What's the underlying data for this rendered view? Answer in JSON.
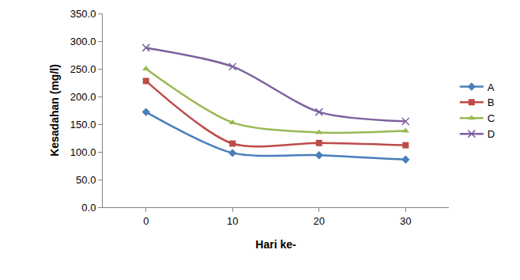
{
  "chart_data": {
    "type": "line",
    "x_label": "Hari ke-",
    "y_label": "Kesadahan (mg/l)",
    "x": [
      0,
      10,
      20,
      30
    ],
    "xlim": [
      -5,
      35
    ],
    "xticks": [
      0,
      10,
      20,
      30
    ],
    "ylim": [
      0,
      350
    ],
    "yticks": [
      {
        "value": 0,
        "label": "0.0"
      },
      {
        "value": 50,
        "label": "50.0"
      },
      {
        "value": 100,
        "label": "100.0"
      },
      {
        "value": 150,
        "label": "150.0"
      },
      {
        "value": 200,
        "label": "200.0"
      },
      {
        "value": 250,
        "label": "250.0"
      },
      {
        "value": 300,
        "label": "300.0"
      },
      {
        "value": 350,
        "label": "350.0"
      }
    ],
    "grid": false,
    "legend": "right",
    "line_style": "spline",
    "series": [
      {
        "name": "A",
        "color": "#4a7ebb",
        "marker": "diamond",
        "values": [
          172,
          98,
          94,
          86
        ]
      },
      {
        "name": "B",
        "color": "#be4b48",
        "marker": "square",
        "values": [
          228,
          115,
          116,
          112
        ]
      },
      {
        "name": "C",
        "color": "#98b954",
        "marker": "triangle-up",
        "values": [
          250,
          153,
          135,
          138
        ]
      },
      {
        "name": "D",
        "color": "#7d60a0",
        "marker": "x-thin",
        "values": [
          288,
          254,
          172,
          155
        ]
      }
    ]
  }
}
